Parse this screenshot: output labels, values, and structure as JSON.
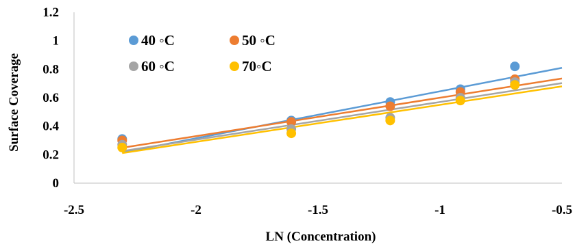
{
  "chart_data": {
    "type": "scatter",
    "title": "",
    "xlabel": "LN (Concentration)",
    "ylabel": "Surface Coverage",
    "xlim": [
      -2.5,
      -0.5
    ],
    "ylim": [
      0,
      1.2
    ],
    "xticks": [
      -2.5,
      -2,
      -1.5,
      -1,
      -0.5
    ],
    "yticks": [
      0,
      0.2,
      0.4,
      0.6,
      0.8,
      1,
      1.2
    ],
    "grid": false,
    "legend": "top-left",
    "x": [
      -2.3026,
      -1.6094,
      -1.204,
      -0.9163,
      -0.6931
    ],
    "series": [
      {
        "name": "40 ◦C",
        "color": "#5B9BD5",
        "values": [
          0.31,
          0.44,
          0.57,
          0.66,
          0.82
        ],
        "trendline": {
          "slope": 0.33,
          "intercept": 0.975
        }
      },
      {
        "name": "50 ◦C",
        "color": "#ED7D31",
        "values": [
          0.3,
          0.43,
          0.54,
          0.64,
          0.73
        ],
        "trendline": {
          "slope": 0.27,
          "intercept": 0.87
        }
      },
      {
        "name": "60 ◦C",
        "color": "#A5A5A5",
        "values": [
          0.27,
          0.38,
          0.46,
          0.6,
          0.71
        ],
        "trendline": {
          "slope": 0.265,
          "intercept": 0.835
        }
      },
      {
        "name": "70◦C",
        "color": "#FFC000",
        "values": [
          0.25,
          0.35,
          0.44,
          0.58,
          0.69
        ],
        "trendline": {
          "slope": 0.26,
          "intercept": 0.81
        }
      }
    ]
  }
}
